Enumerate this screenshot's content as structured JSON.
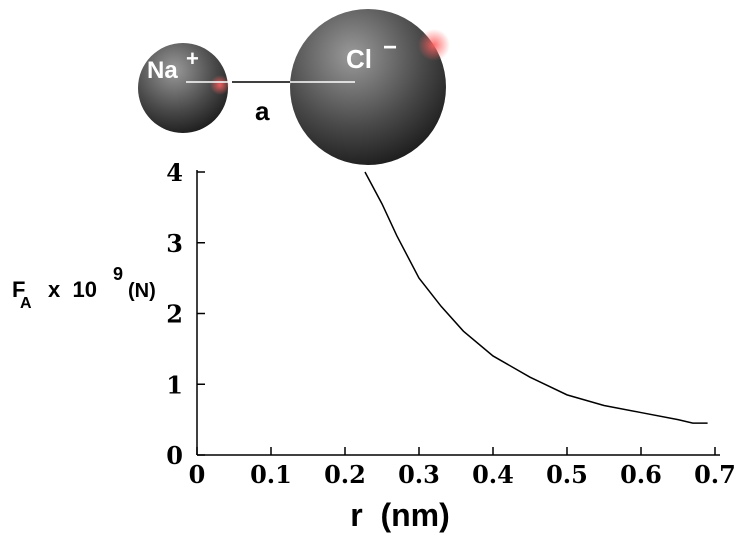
{
  "chart_data": {
    "type": "line",
    "ion_labels": {
      "cation": "Na",
      "cation_charge": "+",
      "anion": "Cl",
      "anion_charge": "−",
      "distance": "a"
    },
    "y_label": {
      "symbol": "F",
      "subscript": "A",
      "times": "x  10",
      "exponent": "9",
      "unit": "(N)"
    },
    "x_label": "r  (nm)",
    "x": [
      0.227,
      0.25,
      0.27,
      0.3,
      0.33,
      0.36,
      0.4,
      0.45,
      0.5,
      0.55,
      0.6,
      0.65,
      0.67,
      0.69
    ],
    "values": [
      4.0,
      3.55,
      3.1,
      2.5,
      2.1,
      1.75,
      1.4,
      1.1,
      0.85,
      0.7,
      0.6,
      0.5,
      0.45,
      0.45
    ],
    "color": "#000000",
    "xlim": [
      0,
      0.7
    ],
    "xticks": [
      0,
      0.1,
      0.2,
      0.3,
      0.4,
      0.5,
      0.6,
      0.7
    ],
    "ylim": [
      0,
      4
    ],
    "yticks": [
      0,
      1,
      2,
      3,
      4
    ]
  }
}
